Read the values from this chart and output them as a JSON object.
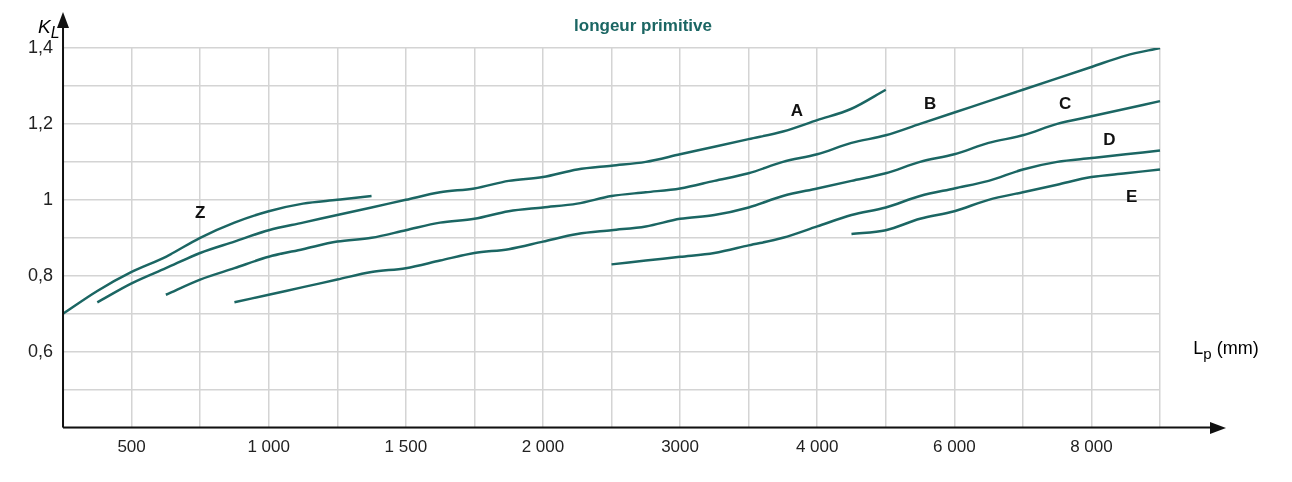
{
  "chart_data": {
    "type": "line",
    "title": "longeur primitive",
    "xlabel": "L$_{p}$ (mm)",
    "ylabel": "K$_{L}$",
    "categories": [
      null,
      null,
      "500",
      null,
      null,
      null,
      "1 000",
      null,
      null,
      null,
      "1 500",
      null,
      null,
      null,
      "2 000",
      null,
      null,
      null,
      "3000",
      null,
      null,
      null,
      "4 000",
      null,
      null,
      null,
      "6 000",
      null,
      null,
      null,
      "8 000",
      null,
      null
    ],
    "series": [
      {
        "name": "Z",
        "color": "#1b6663",
        "values": [
          0.7,
          0.76,
          0.81,
          0.85,
          0.9,
          0.94,
          0.97,
          0.99,
          1.0,
          1.01,
          null,
          null,
          null,
          null,
          null,
          null,
          null,
          null,
          null,
          null,
          null,
          null,
          null,
          null,
          null,
          null,
          null,
          null,
          null,
          null,
          null,
          null,
          null
        ]
      },
      {
        "name": "A",
        "color": "#1b6663",
        "values": [
          null,
          0.73,
          0.78,
          0.82,
          0.86,
          0.89,
          0.92,
          0.94,
          0.96,
          0.98,
          1.0,
          1.02,
          1.03,
          1.05,
          1.06,
          1.08,
          1.09,
          1.1,
          1.12,
          1.14,
          1.16,
          1.18,
          1.21,
          1.24,
          1.29,
          null,
          null,
          null,
          null,
          null,
          null,
          null,
          null
        ]
      },
      {
        "name": "B",
        "color": "#1b6663",
        "values": [
          null,
          null,
          null,
          0.75,
          0.79,
          0.82,
          0.85,
          0.87,
          0.89,
          0.9,
          0.92,
          0.94,
          0.95,
          0.97,
          0.98,
          0.99,
          1.01,
          1.02,
          1.03,
          1.05,
          1.07,
          1.1,
          1.12,
          1.15,
          1.17,
          1.2,
          1.23,
          1.26,
          1.29,
          1.32,
          1.35,
          1.38,
          1.4
        ]
      },
      {
        "name": "C",
        "color": "#1b6663",
        "values": [
          null,
          null,
          null,
          null,
          null,
          0.73,
          0.75,
          0.77,
          0.79,
          0.81,
          0.82,
          0.84,
          0.86,
          0.87,
          0.89,
          0.91,
          0.92,
          0.93,
          0.95,
          0.96,
          0.98,
          1.01,
          1.03,
          1.05,
          1.07,
          1.1,
          1.12,
          1.15,
          1.17,
          1.2,
          1.22,
          1.24,
          1.26
        ]
      },
      {
        "name": "D",
        "color": "#1b6663",
        "values": [
          null,
          null,
          null,
          null,
          null,
          null,
          null,
          null,
          null,
          null,
          null,
          null,
          null,
          null,
          null,
          null,
          0.83,
          0.84,
          0.85,
          0.86,
          0.88,
          0.9,
          0.93,
          0.96,
          0.98,
          1.01,
          1.03,
          1.05,
          1.08,
          1.1,
          1.11,
          1.12,
          1.13
        ]
      },
      {
        "name": "E",
        "color": "#1b6663",
        "values": [
          null,
          null,
          null,
          null,
          null,
          null,
          null,
          null,
          null,
          null,
          null,
          null,
          null,
          null,
          null,
          null,
          null,
          null,
          null,
          null,
          null,
          null,
          null,
          0.91,
          0.92,
          0.95,
          0.97,
          1.0,
          1.02,
          1.04,
          1.06,
          1.07,
          1.08
        ]
      }
    ],
    "ylim": [
      0.4,
      1.4
    ],
    "yticks": [
      {
        "value": 0.4,
        "label": null
      },
      {
        "value": 0.5,
        "label": null
      },
      {
        "value": 0.6,
        "label": "0,6"
      },
      {
        "value": 0.7,
        "label": null
      },
      {
        "value": 0.8,
        "label": "0,8"
      },
      {
        "value": 0.9,
        "label": null
      },
      1,
      {
        "value": 1.1,
        "label": null
      },
      {
        "value": 1.2,
        "label": "1,2"
      },
      {
        "value": 1.3,
        "label": null
      },
      {
        "value": 1.4,
        "label": "1,4"
      }
    ],
    "grid": true,
    "legend": false,
    "marker": "none",
    "line_style": "solid"
  }
}
